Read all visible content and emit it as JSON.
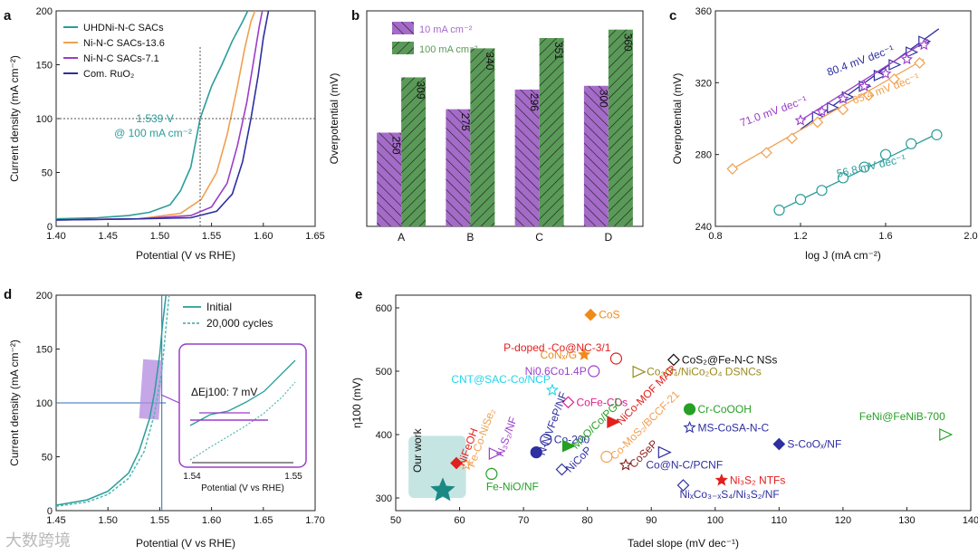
{
  "watermark": "大数跨境",
  "chart_data": [
    {
      "panel": "a",
      "type": "line",
      "xlabel": "Potential (V vs RHE)",
      "ylabel": "Current density (mA cm⁻²)",
      "xlim": [
        1.4,
        1.65
      ],
      "ylim": [
        0,
        200
      ],
      "xticks": [
        "1.40",
        "1.45",
        "1.50",
        "1.55",
        "1.60",
        "1.65"
      ],
      "yticks": [
        "0",
        "50",
        "100",
        "150",
        "200"
      ],
      "annotation": [
        "1.539 V",
        "@ 100 mA cm⁻²"
      ],
      "series": [
        {
          "name": "UHDNi-N-C SACs",
          "color": "#2a9d9b",
          "x": [
            1.4,
            1.44,
            1.47,
            1.49,
            1.51,
            1.52,
            1.53,
            1.539,
            1.55,
            1.56,
            1.57,
            1.58,
            1.585
          ],
          "y": [
            7,
            8,
            10,
            13,
            20,
            33,
            55,
            100,
            130,
            150,
            172,
            190,
            200
          ]
        },
        {
          "name": "Ni-N-C SACs-13.6",
          "color": "#f0a050",
          "x": [
            1.4,
            1.48,
            1.52,
            1.54,
            1.555,
            1.565,
            1.575,
            1.582,
            1.588,
            1.592
          ],
          "y": [
            6,
            7,
            12,
            25,
            50,
            85,
            130,
            165,
            190,
            200
          ]
        },
        {
          "name": "Ni-N-C SACs-7.1",
          "color": "#9b3ec8",
          "x": [
            1.4,
            1.48,
            1.53,
            1.55,
            1.565,
            1.575,
            1.584,
            1.59,
            1.596,
            1.599
          ],
          "y": [
            6,
            7,
            10,
            18,
            40,
            75,
            115,
            150,
            185,
            200
          ]
        },
        {
          "name": "Com. RuO₂",
          "color": "#2e2fa0",
          "x": [
            1.4,
            1.48,
            1.53,
            1.555,
            1.57,
            1.58,
            1.588,
            1.595,
            1.6,
            1.605
          ],
          "y": [
            6,
            7,
            8,
            14,
            30,
            60,
            100,
            140,
            175,
            200
          ]
        }
      ]
    },
    {
      "panel": "b",
      "type": "bar",
      "ylabel": "Overpotential (mV)",
      "categories": [
        "A",
        "B",
        "C",
        "D"
      ],
      "series": [
        {
          "name": "10 mA cm⁻²",
          "color": "#a56bc9",
          "values": [
            250,
            275,
            296,
            300
          ]
        },
        {
          "name": "100 mA cm⁻²",
          "color": "#5a9a58",
          "values": [
            309,
            340,
            351,
            360
          ]
        }
      ],
      "ylim": [
        150,
        380
      ]
    },
    {
      "panel": "c",
      "type": "scatter",
      "xlabel": "log J (mA cm⁻²)",
      "ylabel": "Overpotential (mV)",
      "xlim": [
        0.8,
        2.0
      ],
      "ylim": [
        240,
        360
      ],
      "xticks": [
        "0.8",
        "1.2",
        "1.6",
        "2.0"
      ],
      "yticks": [
        "240",
        "280",
        "320",
        "360"
      ],
      "series": [
        {
          "name": "80.4 mV dec⁻¹",
          "color": "#2e2fa0",
          "marker": "triangle",
          "x": [
            1.28,
            1.35,
            1.42,
            1.5,
            1.57,
            1.64,
            1.72,
            1.78
          ],
          "y": [
            301,
            306,
            312,
            318,
            324,
            330,
            337,
            343
          ],
          "fit": [
            [
              1.2,
              294
            ],
            [
              1.85,
              350
            ]
          ]
        },
        {
          "name": "71.0 mV dec⁻¹",
          "color": "#9b3ec8",
          "marker": "star",
          "x": [
            1.2,
            1.3,
            1.4,
            1.5,
            1.6,
            1.7,
            1.78
          ],
          "y": [
            299,
            304,
            311,
            318,
            325,
            333,
            341
          ],
          "fit": [
            [
              1.2,
              299
            ],
            [
              1.8,
              344
            ]
          ]
        },
        {
          "name": "65.4 mV dec⁻¹",
          "color": "#f0a050",
          "marker": "diamond",
          "x": [
            0.88,
            1.04,
            1.16,
            1.28,
            1.4,
            1.52,
            1.64,
            1.76
          ],
          "y": [
            272,
            281,
            289,
            298,
            305,
            313,
            322,
            331
          ],
          "fit": [
            [
              0.88,
              272
            ],
            [
              1.78,
              333
            ]
          ]
        },
        {
          "name": "56.8 mV dec⁻¹",
          "color": "#2a9d9b",
          "marker": "circle",
          "x": [
            1.1,
            1.2,
            1.3,
            1.4,
            1.5,
            1.6,
            1.72,
            1.84
          ],
          "y": [
            249,
            255,
            260,
            267,
            273,
            280,
            286,
            291
          ],
          "fit": [
            [
              1.1,
              249
            ],
            [
              1.85,
              292
            ]
          ]
        }
      ]
    },
    {
      "panel": "d",
      "type": "line",
      "xlabel": "Potential (V vs RHE)",
      "ylabel": "Current density (mA cm⁻²)",
      "xlim": [
        1.45,
        1.7
      ],
      "ylim": [
        0,
        200
      ],
      "xticks": [
        "1.45",
        "1.50",
        "1.55",
        "1.60",
        "1.65",
        "1.70"
      ],
      "yticks": [
        "0",
        "50",
        "100",
        "150",
        "200"
      ],
      "inset": {
        "annotation": "ΔEj100: 7 mV",
        "xticks": [
          "1.54",
          "1.55"
        ],
        "xlabel": "Potential (V vs RHE)"
      },
      "series": [
        {
          "name": "Initial",
          "color": "#2a9d9b",
          "style": "solid",
          "x": [
            1.45,
            1.48,
            1.5,
            1.52,
            1.53,
            1.54,
            1.545,
            1.55,
            1.553,
            1.556
          ],
          "y": [
            5,
            10,
            18,
            35,
            55,
            85,
            110,
            145,
            175,
            200
          ]
        },
        {
          "name": "20,000 cycles",
          "color": "#4fb8b0",
          "style": "dashed",
          "x": [
            1.45,
            1.48,
            1.5,
            1.52,
            1.535,
            1.545,
            1.552,
            1.556,
            1.559
          ],
          "y": [
            4,
            8,
            15,
            30,
            55,
            90,
            130,
            170,
            200
          ]
        }
      ]
    },
    {
      "panel": "e",
      "type": "scatter",
      "xlabel": "Tadel slope (mV dec⁻¹)",
      "ylabel": "η100 (mV)",
      "xlim": [
        50,
        140
      ],
      "ylim": [
        280,
        620
      ],
      "xticks": [
        "50",
        "60",
        "70",
        "80",
        "90",
        "100",
        "110",
        "120",
        "130",
        "140"
      ],
      "yticks": [
        "300",
        "400",
        "500",
        "600"
      ],
      "our_work": {
        "label": "Our work",
        "x": 56.8,
        "y": 309
      },
      "points": [
        {
          "label": "CoS",
          "x": 80.5,
          "y": 589,
          "color": "#f08a1a"
        },
        {
          "label": "P-doped -Co@NC-3/1",
          "x": 84.5,
          "y": 520,
          "color": "#e0201e"
        },
        {
          "label": "Co₃O₄/NiCo₂O₄ DSNCs",
          "x": 88,
          "y": 499,
          "color": "#9a8a20"
        },
        {
          "label": "CoNₓ/G",
          "x": 79.5,
          "y": 526,
          "color": "#f08a1a"
        },
        {
          "label": "CoS₂@Fe-N-C NSs",
          "x": 93.5,
          "y": 518,
          "color": "#111111"
        },
        {
          "label": "Ni0.6Co1.4P",
          "x": 81,
          "y": 500,
          "color": "#9b3ec8"
        },
        {
          "label": "NiCo-MOF MAR",
          "x": 84,
          "y": 420,
          "color": "#e0201e"
        },
        {
          "label": "CNT@SAC-Co/NCP",
          "x": 74.5,
          "y": 470,
          "color": "#25d5e8"
        },
        {
          "label": "CoFe-CDs",
          "x": 77,
          "y": 451,
          "color": "#e0208a"
        },
        {
          "label": "Cr-CoOOH",
          "x": 96,
          "y": 440,
          "color": "#25a025"
        },
        {
          "label": "FeNi@FeNiB-700",
          "x": 136,
          "y": 400,
          "color": "#25a025"
        },
        {
          "label": "MS-CoSA-N-C",
          "x": 96,
          "y": 411,
          "color": "#2e2fa0"
        },
        {
          "label": "S-CoOₓ/NF",
          "x": 110,
          "y": 385,
          "color": "#2e2fa0"
        },
        {
          "label": "Co-MoS₂/BCCF-21",
          "x": 83,
          "y": 365,
          "color": "#f0a050"
        },
        {
          "label": "Co@N-C/PCNF",
          "x": 92,
          "y": 372,
          "color": "#2e2fa0"
        },
        {
          "label": "Ni₃S₂ NTFs",
          "x": 101,
          "y": 328,
          "color": "#e0201e"
        },
        {
          "label": "NiₓCo₃₋ₓS₄/Ni₃S₂/NF",
          "x": 95,
          "y": 320,
          "color": "#2e2fa0"
        },
        {
          "label": "Co-200",
          "x": 73.5,
          "y": 392,
          "color": "#2e2fa0"
        },
        {
          "label": "MnO/Co/PGC",
          "x": 77,
          "y": 382,
          "color": "#25a025"
        },
        {
          "label": "CoSeP",
          "x": 86,
          "y": 352,
          "color": "#8a1a1a"
        },
        {
          "label": "NiCoP",
          "x": 76,
          "y": 345,
          "color": "#2e2fa0"
        },
        {
          "label": "N-NiVFeP/NF",
          "x": 72,
          "y": 372,
          "color": "#2e2fa0"
        },
        {
          "label": "N₃S₂/NF",
          "x": 65.5,
          "y": 370,
          "color": "#9b3ec8"
        },
        {
          "label": "Fe-Co-NiSe₂",
          "x": 61,
          "y": 353,
          "color": "#f0a050"
        },
        {
          "label": "NiFeOH",
          "x": 59.5,
          "y": 355,
          "color": "#e0201e"
        },
        {
          "label": "Fe-NiO/NF",
          "x": 65,
          "y": 338,
          "color": "#25a025"
        }
      ]
    }
  ]
}
